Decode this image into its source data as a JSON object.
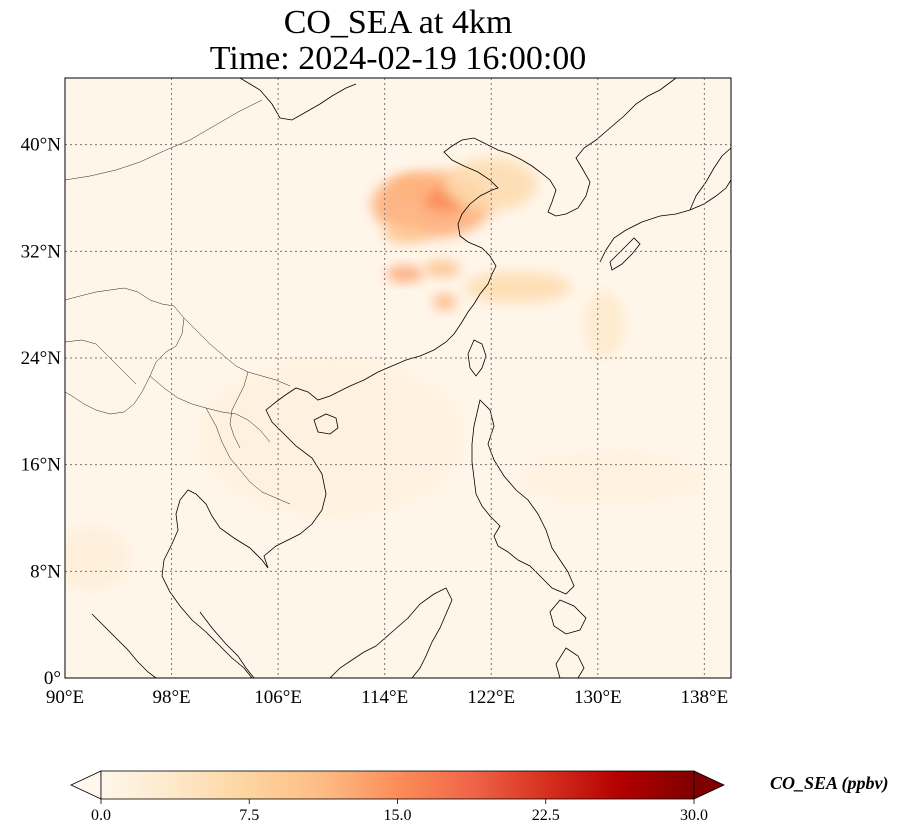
{
  "title": {
    "line1": "CO_SEA at 4km",
    "line2": "Time: 2024-02-19 16:00:00"
  },
  "map": {
    "projection": "PlateCarree",
    "lon_range": [
      90,
      140
    ],
    "lat_range": [
      0,
      45
    ],
    "gridlines": "dotted gray",
    "x_ticks": [
      {
        "value": 90,
        "label": "90°E"
      },
      {
        "value": 98,
        "label": "98°E"
      },
      {
        "value": 106,
        "label": "106°E"
      },
      {
        "value": 114,
        "label": "114°E"
      },
      {
        "value": 122,
        "label": "122°E"
      },
      {
        "value": 130,
        "label": "130°E"
      },
      {
        "value": 138,
        "label": "138°E"
      }
    ],
    "y_ticks": [
      {
        "value": 0,
        "label": "0°"
      },
      {
        "value": 8,
        "label": "8°N"
      },
      {
        "value": 16,
        "label": "16°N"
      },
      {
        "value": 24,
        "label": "24°N"
      },
      {
        "value": 32,
        "label": "32°N"
      },
      {
        "value": 40,
        "label": "40°N"
      }
    ],
    "background_color": "#fff6ea",
    "coastline_color": "#000000"
  },
  "plumes": [
    {
      "lon": 117.5,
      "lat": 35.5,
      "value": 12.5,
      "spread_lon": 4.5,
      "spread_lat": 2.5
    },
    {
      "lon": 118.5,
      "lat": 35.9,
      "value": 15.5,
      "spread_lon": 1.6,
      "spread_lat": 0.9
    },
    {
      "lon": 116.0,
      "lat": 36.8,
      "value": 12.0,
      "spread_lon": 1.5,
      "spread_lat": 0.8
    },
    {
      "lon": 115.5,
      "lat": 33.3,
      "value": 9.5,
      "spread_lon": 1.6,
      "spread_lat": 0.7
    },
    {
      "lon": 115.5,
      "lat": 30.3,
      "value": 13.5,
      "spread_lon": 1.4,
      "spread_lat": 0.6
    },
    {
      "lon": 118.3,
      "lat": 30.7,
      "value": 11.0,
      "spread_lon": 1.4,
      "spread_lat": 0.6
    },
    {
      "lon": 118.5,
      "lat": 28.2,
      "value": 12.0,
      "spread_lon": 0.9,
      "spread_lat": 0.6
    },
    {
      "lon": 124.0,
      "lat": 29.3,
      "value": 6.0,
      "spread_lon": 4.0,
      "spread_lat": 1.2
    },
    {
      "lon": 122.0,
      "lat": 37.0,
      "value": 6.0,
      "spread_lon": 3.5,
      "spread_lat": 2.0
    },
    {
      "lon": 130.5,
      "lat": 26.5,
      "value": 3.5,
      "spread_lon": 1.5,
      "spread_lat": 2.5
    },
    {
      "lon": 110.0,
      "lat": 18.0,
      "value": 1.5,
      "spread_lon": 10,
      "spread_lat": 6
    },
    {
      "lon": 92.0,
      "lat": 9.0,
      "value": 2.0,
      "spread_lon": 3,
      "spread_lat": 2.5
    },
    {
      "lon": 131.0,
      "lat": 15.0,
      "value": 1.5,
      "spread_lon": 7,
      "spread_lat": 2
    }
  ],
  "colorbar": {
    "min": 0.0,
    "max": 30.0,
    "colormap": "OrRd",
    "extend": "both",
    "ticks": [
      {
        "value": 0.0,
        "label": "0.0"
      },
      {
        "value": 7.5,
        "label": "7.5"
      },
      {
        "value": 15.0,
        "label": "15.0"
      },
      {
        "value": 22.5,
        "label": "22.5"
      },
      {
        "value": 30.0,
        "label": "30.0"
      }
    ],
    "label": "CO_SEA (ppbv)",
    "stops": [
      "#fff7ec",
      "#fee8c8",
      "#fdd49e",
      "#fdbb84",
      "#fc8d59",
      "#ef6548",
      "#d7301f",
      "#b30000",
      "#7f0000"
    ]
  }
}
